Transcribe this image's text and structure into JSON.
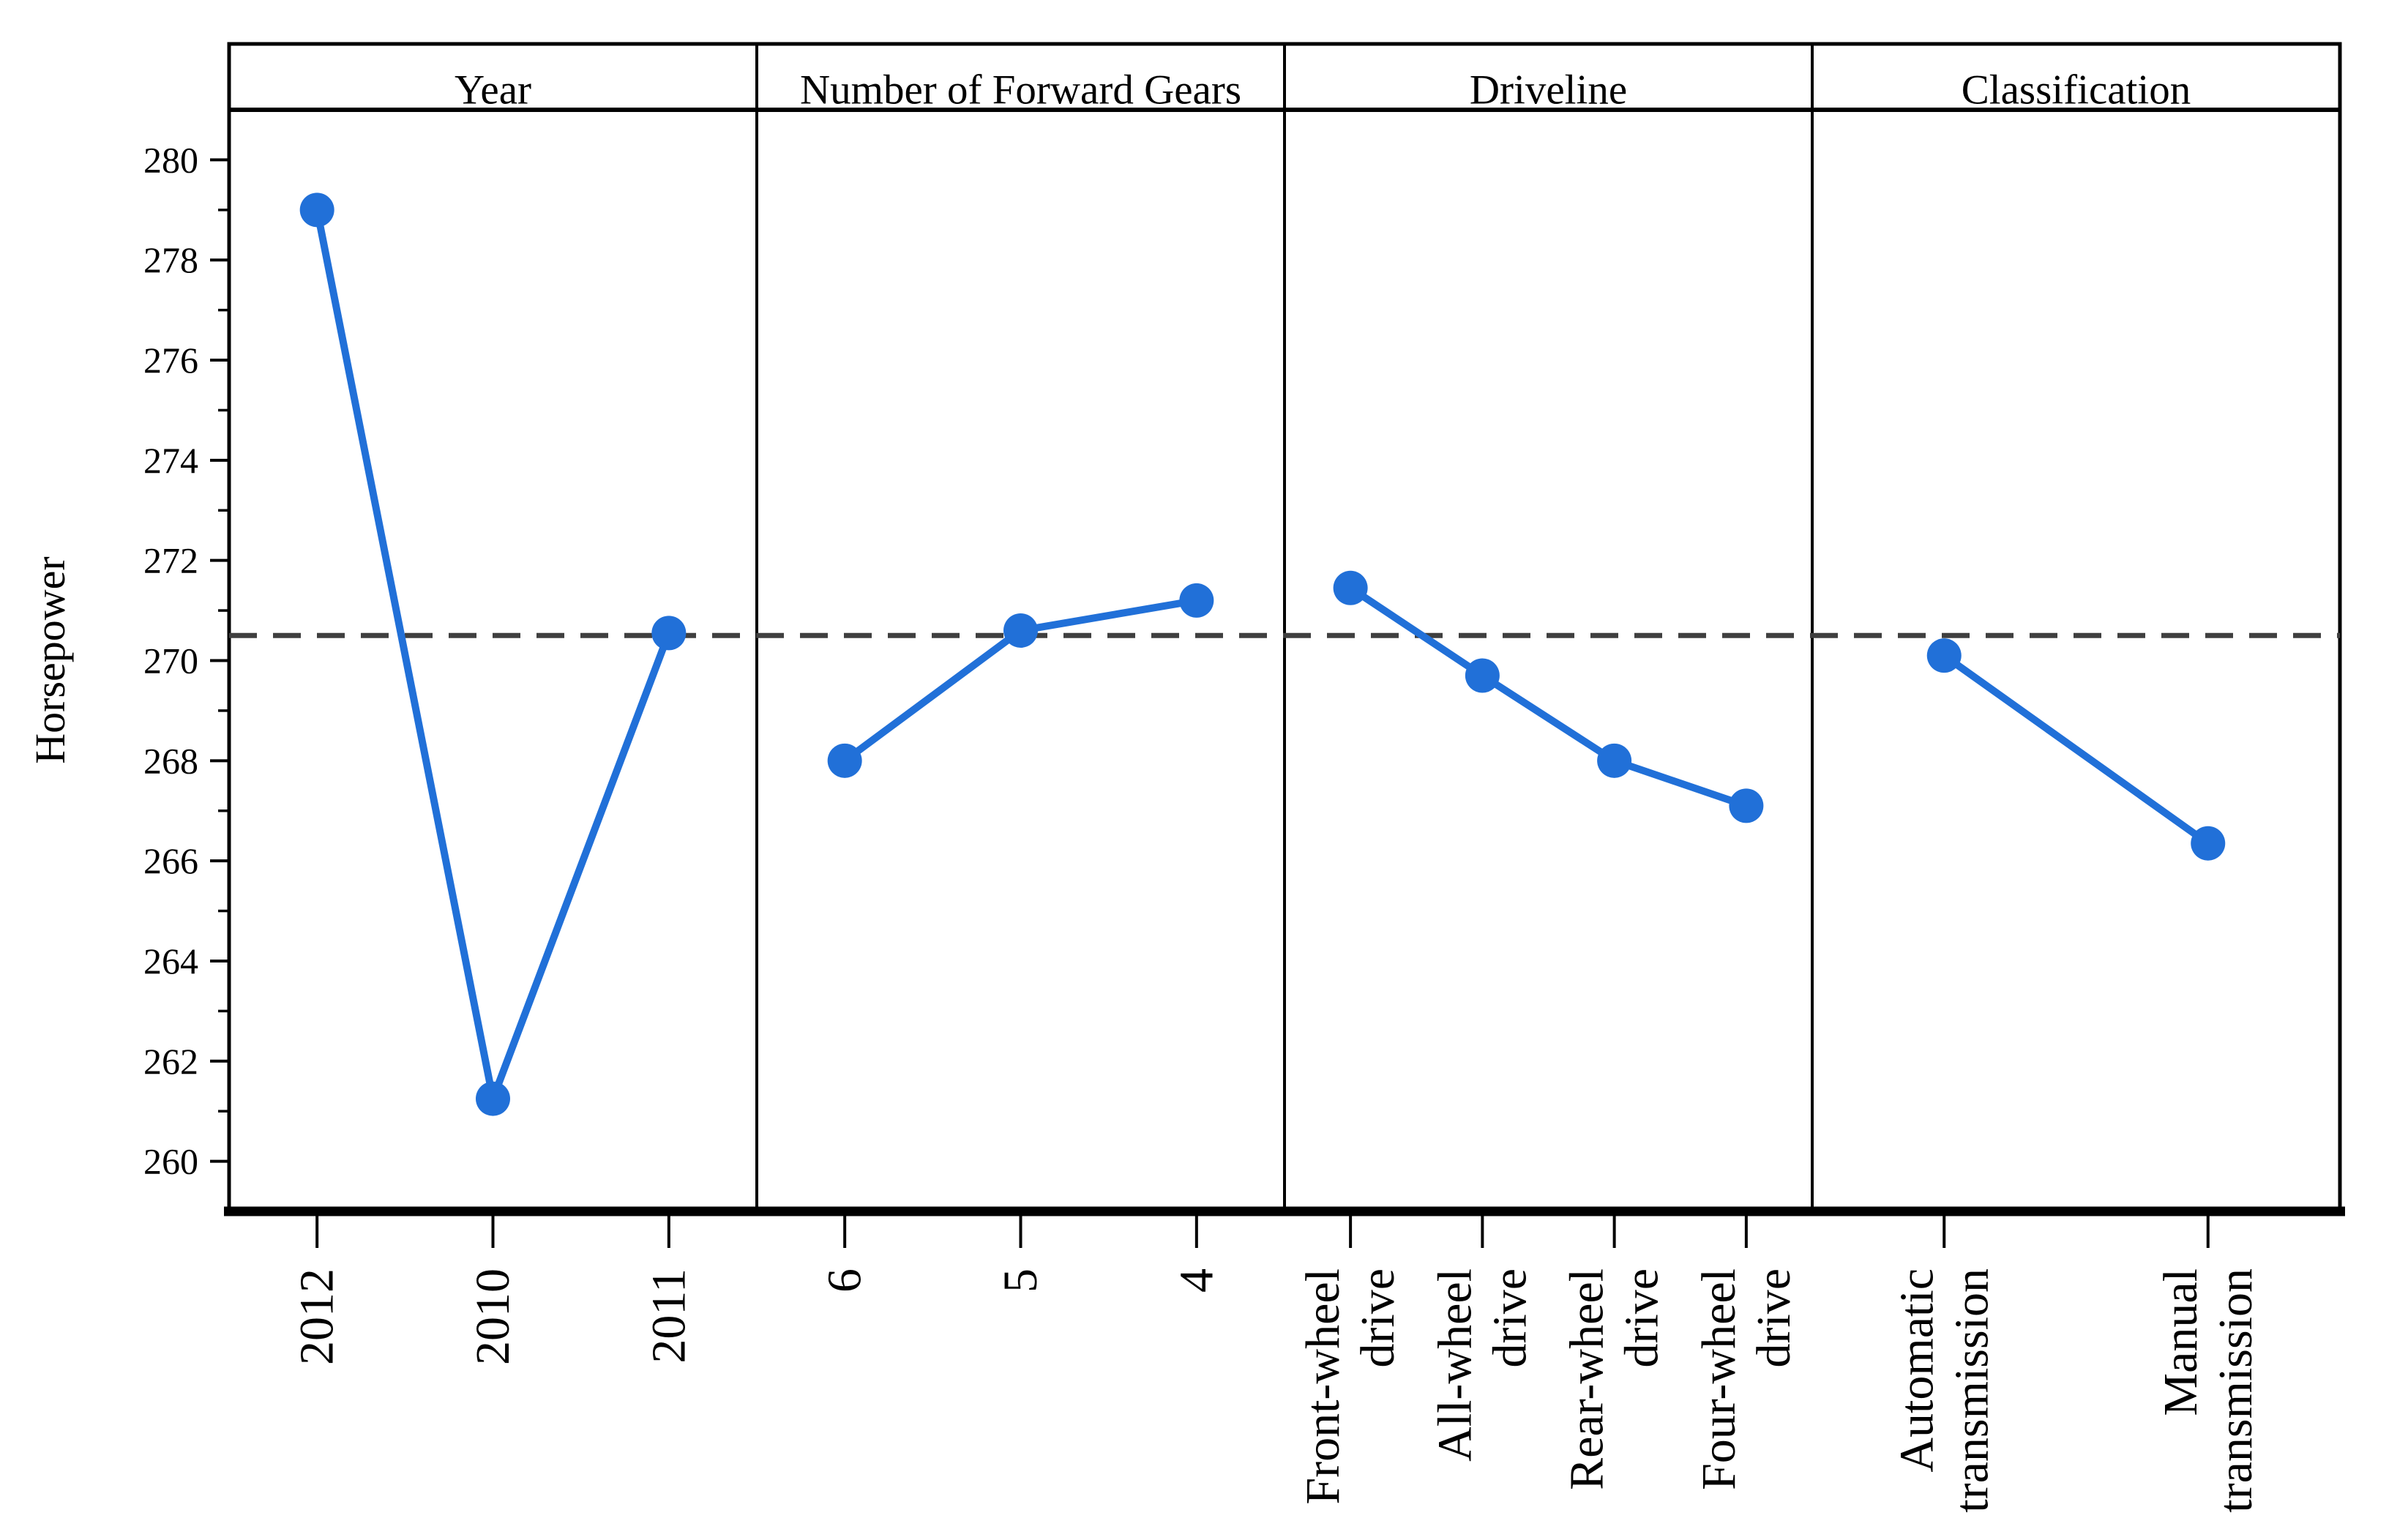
{
  "colors": {
    "series": "#2170d8",
    "reference_line": "#3f3f3f",
    "axis": "#000000",
    "background": "#ffffff"
  },
  "chart_data": {
    "type": "line",
    "title": "",
    "xlabel": "",
    "ylabel": "Horsepower",
    "ylim": [
      259,
      281
    ],
    "yticks": [
      260,
      262,
      264,
      266,
      268,
      270,
      272,
      274,
      276,
      278,
      280
    ],
    "y_minor_step": 1,
    "grid": false,
    "legend": "none",
    "reference_line": {
      "value": 270.5,
      "style": "dashed"
    },
    "panels": [
      {
        "title": "Year",
        "categories": [
          "2012",
          "2010",
          "2011"
        ],
        "values": [
          279.0,
          261.25,
          270.55
        ]
      },
      {
        "title": "Number of Forward Gears",
        "categories": [
          "6",
          "5",
          "4"
        ],
        "values": [
          268.0,
          270.6,
          271.2
        ]
      },
      {
        "title": "Driveline",
        "categories": [
          "Front-wheel drive",
          "All-wheel drive",
          "Rear-wheel drive",
          "Four-wheel drive"
        ],
        "values": [
          271.45,
          269.7,
          268.0,
          267.1
        ]
      },
      {
        "title": "Classification",
        "categories": [
          "Automatic transmission",
          "Manual transmission"
        ],
        "values": [
          270.1,
          266.35
        ]
      }
    ]
  }
}
